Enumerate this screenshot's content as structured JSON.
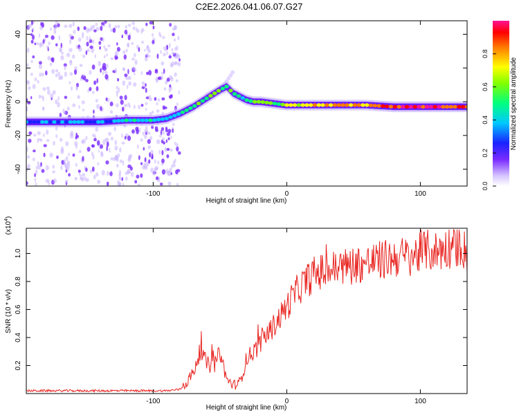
{
  "title": "C2E2.2026.041.06.07.G27",
  "chart_data": [
    {
      "type": "heatmap",
      "xlabel": "Height of straight line (km)",
      "ylabel": "Frequency (Hz)",
      "xlim": [
        -195,
        135
      ],
      "ylim": [
        -50,
        48
      ],
      "xticks": [
        -100,
        0,
        100
      ],
      "yticks": [
        -40,
        -20,
        0,
        20,
        40
      ],
      "colorbar": {
        "label": "Normalized spectral amplitude",
        "range": [
          0.0,
          1.0
        ],
        "ticks": [
          "0.0",
          "0.2",
          "0.4",
          "0.6",
          "0.8"
        ],
        "tick_values": [
          0.0,
          0.2,
          0.4,
          0.6,
          0.8
        ]
      },
      "ridge": {
        "x": [
          -195,
          -180,
          -160,
          -140,
          -120,
          -100,
          -90,
          -80,
          -70,
          -60,
          -50,
          -45,
          -40,
          -35,
          -30,
          -25,
          -20,
          -10,
          0,
          10,
          20,
          40,
          60,
          80,
          100,
          120,
          135
        ],
        "y": [
          -12,
          -12,
          -12,
          -12,
          -11,
          -11,
          -10,
          -7,
          -3,
          2,
          7,
          9,
          5,
          3,
          1,
          0,
          0,
          -1,
          -2,
          -2,
          -2,
          -2,
          -2,
          -3,
          -3,
          -3,
          -3
        ],
        "amplitude": [
          0.35,
          0.4,
          0.35,
          0.4,
          0.45,
          0.5,
          0.45,
          0.5,
          0.55,
          0.6,
          0.65,
          0.6,
          0.6,
          0.55,
          0.55,
          0.6,
          0.65,
          0.6,
          0.7,
          0.75,
          0.8,
          0.85,
          0.85,
          0.95,
          1.0,
          0.95,
          0.9
        ]
      },
      "secondary_track": {
        "x": [
          -60,
          -50,
          -45,
          -40
        ],
        "y": [
          4,
          8,
          12,
          18
        ]
      },
      "noise_region": {
        "x_from": -195,
        "x_to": -80,
        "amplitude": 0.15
      }
    },
    {
      "type": "line",
      "xlabel": "Height of straight line (km)",
      "ylabel": "SNR (10 * v/v)",
      "y_multiplier": "(x10",
      "y_multiplier_exp": "4",
      "xlim": [
        -195,
        135
      ],
      "ylim": [
        0.0,
        1.18
      ],
      "xticks": [
        -100,
        0,
        100
      ],
      "yticks": [
        "0.2",
        "0.4",
        "0.6",
        "0.8",
        "1.0"
      ],
      "ytick_values": [
        0.2,
        0.4,
        0.6,
        0.8,
        1.0
      ],
      "series": [
        {
          "name": "SNR",
          "color": "#e8231f",
          "x": [
            -195,
            -180,
            -160,
            -140,
            -120,
            -100,
            -90,
            -80,
            -75,
            -70,
            -65,
            -60,
            -55,
            -50,
            -45,
            -40,
            -35,
            -30,
            -25,
            -20,
            -15,
            -10,
            -5,
            0,
            5,
            10,
            20,
            30,
            40,
            50,
            60,
            70,
            80,
            90,
            100,
            105,
            110,
            120,
            130,
            135
          ],
          "y": [
            0.02,
            0.02,
            0.02,
            0.02,
            0.02,
            0.02,
            0.02,
            0.03,
            0.08,
            0.15,
            0.3,
            0.22,
            0.18,
            0.3,
            0.1,
            0.06,
            0.08,
            0.25,
            0.3,
            0.35,
            0.42,
            0.48,
            0.55,
            0.62,
            0.7,
            0.76,
            0.85,
            0.88,
            0.9,
            0.92,
            0.93,
            0.95,
            0.97,
            0.98,
            1.0,
            1.03,
            1.01,
            1.04,
            1.06,
            1.0
          ]
        }
      ]
    }
  ]
}
